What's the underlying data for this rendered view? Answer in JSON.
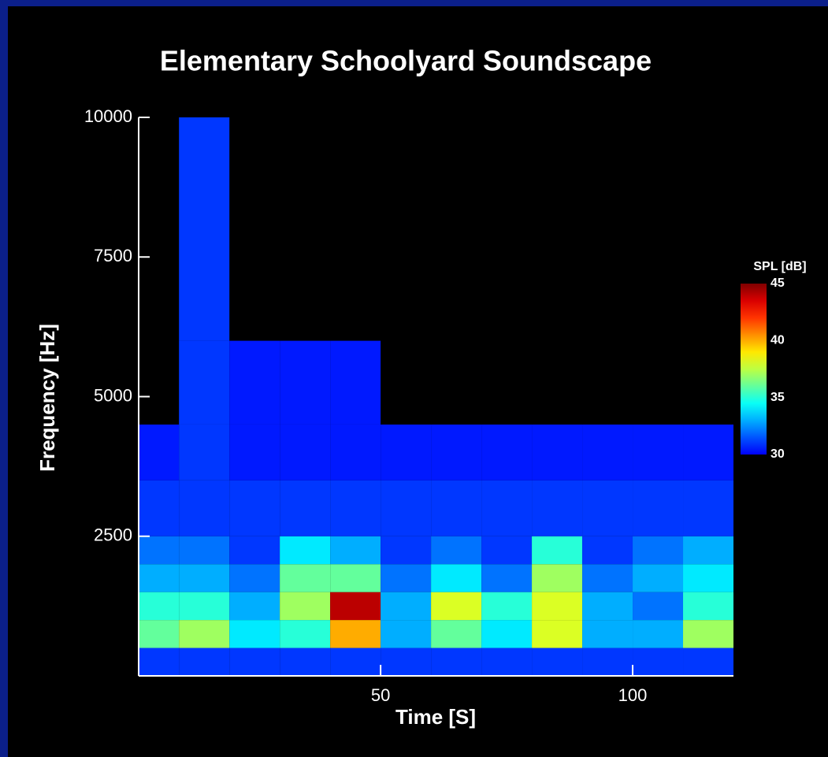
{
  "chart_data": {
    "type": "heatmap",
    "title": "Elementary Schoolyard Soundscape",
    "xlabel": "Time [S]",
    "ylabel": "Frequency [Hz]",
    "colorbar_label": "SPL [dB]",
    "x": [
      2,
      10,
      20,
      30,
      40,
      50,
      60,
      70,
      80,
      90,
      100,
      110,
      120
    ],
    "y": [
      0,
      500,
      1000,
      1500,
      2000,
      2500,
      3500,
      4500,
      6000,
      10000
    ],
    "z": [
      [
        31,
        31,
        31,
        31,
        31,
        31,
        31,
        31,
        31,
        31,
        31,
        31
      ],
      [
        36,
        37,
        34,
        35,
        40,
        33,
        36,
        34,
        38,
        33,
        33,
        37
      ],
      [
        35,
        35,
        33,
        37,
        44,
        33,
        38,
        35,
        38,
        33,
        32,
        35
      ],
      [
        33,
        33,
        32,
        36,
        36,
        32,
        34,
        32,
        37,
        32,
        33,
        34
      ],
      [
        32,
        32,
        31,
        34,
        33,
        31,
        32,
        31,
        35,
        31,
        32,
        33
      ],
      [
        31,
        31,
        31,
        31,
        31,
        31,
        31,
        31,
        31,
        31,
        31,
        31
      ],
      [
        30.5,
        31,
        30.5,
        30.5,
        30.5,
        30.5,
        30.5,
        30.5,
        30.5,
        30.5,
        30.5,
        30.5
      ],
      [
        null,
        31,
        30.5,
        30.5,
        30.5,
        null,
        null,
        null,
        null,
        null,
        null,
        null
      ],
      [
        null,
        31,
        null,
        null,
        null,
        null,
        null,
        null,
        null,
        null,
        null,
        null
      ]
    ],
    "xlim": [
      2,
      120
    ],
    "xticks": [
      50,
      100
    ],
    "ylim": [
      0,
      10000
    ],
    "yticks": [
      2500,
      5000,
      7500,
      10000
    ],
    "clim": [
      30,
      45
    ],
    "cticks": [
      30,
      35,
      40,
      45
    ],
    "colormap": "jet"
  }
}
